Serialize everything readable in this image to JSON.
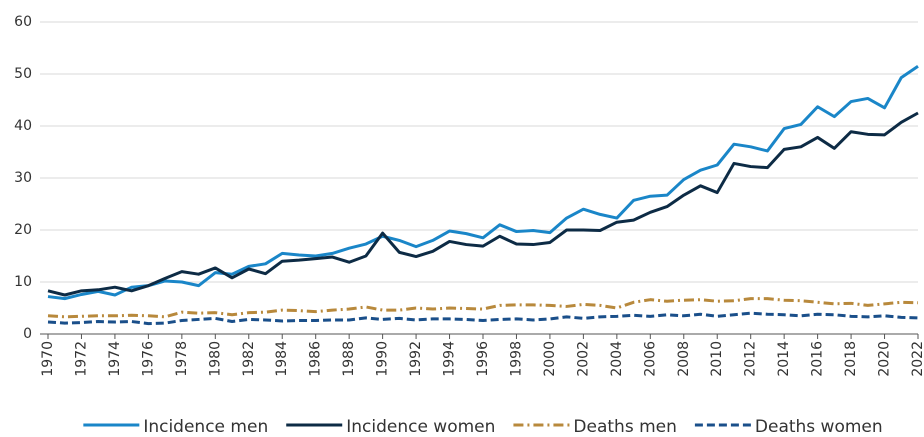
{
  "chart_data": {
    "type": "line",
    "x": [
      1970,
      1971,
      1972,
      1973,
      1974,
      1975,
      1976,
      1977,
      1978,
      1979,
      1980,
      1981,
      1982,
      1983,
      1984,
      1985,
      1986,
      1987,
      1988,
      1989,
      1990,
      1991,
      1992,
      1993,
      1994,
      1995,
      1996,
      1997,
      1998,
      1999,
      2000,
      2001,
      2002,
      2003,
      2004,
      2005,
      2006,
      2007,
      2008,
      2009,
      2010,
      2011,
      2012,
      2013,
      2014,
      2015,
      2016,
      2017,
      2018,
      2019,
      2020,
      2021,
      2022
    ],
    "series": [
      {
        "name": "Incidence men",
        "color": "#1a86c8",
        "dash": "solid",
        "values": [
          7.2,
          6.8,
          7.6,
          8.2,
          7.5,
          9.0,
          9.3,
          10.2,
          10.0,
          9.3,
          11.8,
          11.5,
          13.0,
          13.5,
          15.5,
          15.2,
          15.0,
          15.5,
          16.5,
          17.3,
          18.8,
          18.0,
          16.8,
          18.0,
          19.8,
          19.3,
          18.5,
          21.0,
          19.7,
          19.9,
          19.5,
          22.3,
          24.0,
          23.0,
          22.3,
          25.7,
          26.5,
          26.7,
          29.7,
          31.5,
          32.5,
          36.5,
          36.0,
          35.2,
          39.5,
          40.3,
          43.7,
          41.8,
          44.7,
          45.3,
          43.5,
          49.3,
          51.5
        ]
      },
      {
        "name": "Incidence women",
        "color": "#0d2b45",
        "dash": "solid",
        "values": [
          8.3,
          7.5,
          8.3,
          8.5,
          9.0,
          8.3,
          9.3,
          10.7,
          12.0,
          11.5,
          12.7,
          10.8,
          12.5,
          11.6,
          14.0,
          14.2,
          14.5,
          14.8,
          13.8,
          15.0,
          19.4,
          15.7,
          14.9,
          15.9,
          17.8,
          17.2,
          16.9,
          18.8,
          17.3,
          17.2,
          17.6,
          20.0,
          20.0,
          19.9,
          21.5,
          21.9,
          23.4,
          24.5,
          26.7,
          28.5,
          27.2,
          32.8,
          32.2,
          32.0,
          35.5,
          36.0,
          37.8,
          35.7,
          38.9,
          38.4,
          38.3,
          40.7,
          42.5
        ]
      },
      {
        "name": "Deaths men",
        "color": "#b8893c",
        "dash": "dashdot",
        "values": [
          3.5,
          3.3,
          3.4,
          3.5,
          3.5,
          3.6,
          3.5,
          3.3,
          4.2,
          4.0,
          4.1,
          3.7,
          4.1,
          4.2,
          4.6,
          4.5,
          4.3,
          4.6,
          4.8,
          5.2,
          4.6,
          4.6,
          5.0,
          4.8,
          5.0,
          4.9,
          4.8,
          5.5,
          5.6,
          5.6,
          5.5,
          5.3,
          5.7,
          5.5,
          5.0,
          6.1,
          6.6,
          6.3,
          6.5,
          6.6,
          6.3,
          6.4,
          6.8,
          6.8,
          6.5,
          6.4,
          6.1,
          5.8,
          5.9,
          5.5,
          5.8,
          6.1,
          6.0
        ]
      },
      {
        "name": "Deaths women",
        "color": "#1a4f8a",
        "dash": "dash",
        "values": [
          2.3,
          2.1,
          2.2,
          2.4,
          2.3,
          2.4,
          2.0,
          2.1,
          2.6,
          2.8,
          3.0,
          2.4,
          2.8,
          2.7,
          2.5,
          2.6,
          2.6,
          2.7,
          2.7,
          3.1,
          2.8,
          3.0,
          2.7,
          2.9,
          2.9,
          2.8,
          2.6,
          2.8,
          2.9,
          2.7,
          2.9,
          3.3,
          3.0,
          3.3,
          3.4,
          3.6,
          3.4,
          3.7,
          3.5,
          3.8,
          3.4,
          3.7,
          4.0,
          3.8,
          3.7,
          3.5,
          3.8,
          3.7,
          3.4,
          3.3,
          3.5,
          3.2,
          3.1
        ]
      }
    ],
    "xlim": [
      1970,
      2022
    ],
    "xticks": [
      1970,
      1972,
      1974,
      1976,
      1978,
      1980,
      1982,
      1984,
      1986,
      1988,
      1990,
      1992,
      1994,
      1996,
      1998,
      2000,
      2002,
      2004,
      2006,
      2008,
      2010,
      2012,
      2014,
      2016,
      2018,
      2020,
      2022
    ],
    "ylim": [
      0,
      60
    ],
    "yticks": [
      0,
      10,
      20,
      30,
      40,
      50,
      60
    ],
    "grid": true,
    "legend": "bottom"
  }
}
